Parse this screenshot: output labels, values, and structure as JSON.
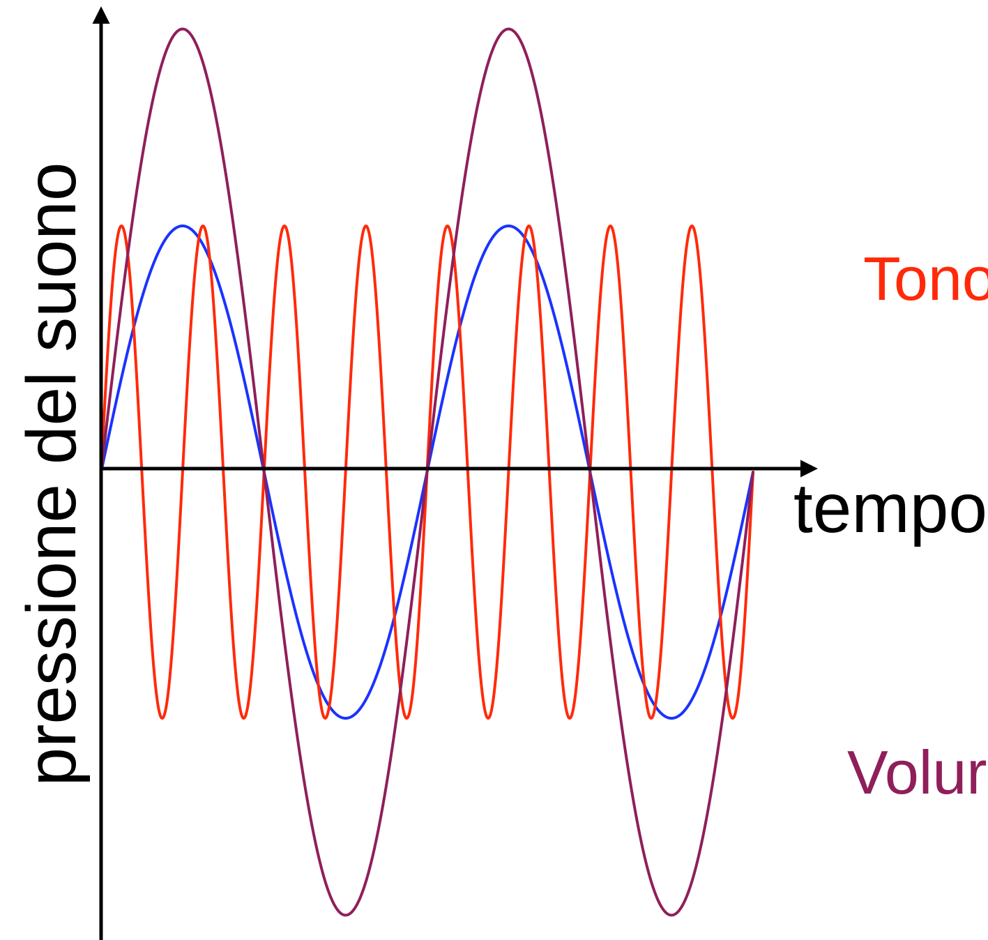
{
  "chart_data": {
    "type": "line",
    "title": "",
    "xlabel": "tempo",
    "ylabel": "pressione del suono",
    "xlim": [
      0,
      2
    ],
    "ylim": [
      -1.85,
      1.85
    ],
    "grid": false,
    "legend": "none",
    "series": [
      {
        "color": "#1a33ff",
        "amplitude": 1.0,
        "cycles": 2,
        "x_end": 2
      },
      {
        "color": "#ff2a0a",
        "amplitude": 1.0,
        "cycles": 8,
        "x_end": 2
      },
      {
        "color": "#8f1f5a",
        "amplitude": 1.8,
        "cycles": 2,
        "x_end": 2
      }
    ],
    "annotations": [
      {
        "text": "Tono",
        "color": "#ff2a0a"
      },
      {
        "text": "Volur",
        "color": "#8f1f5a"
      }
    ]
  }
}
